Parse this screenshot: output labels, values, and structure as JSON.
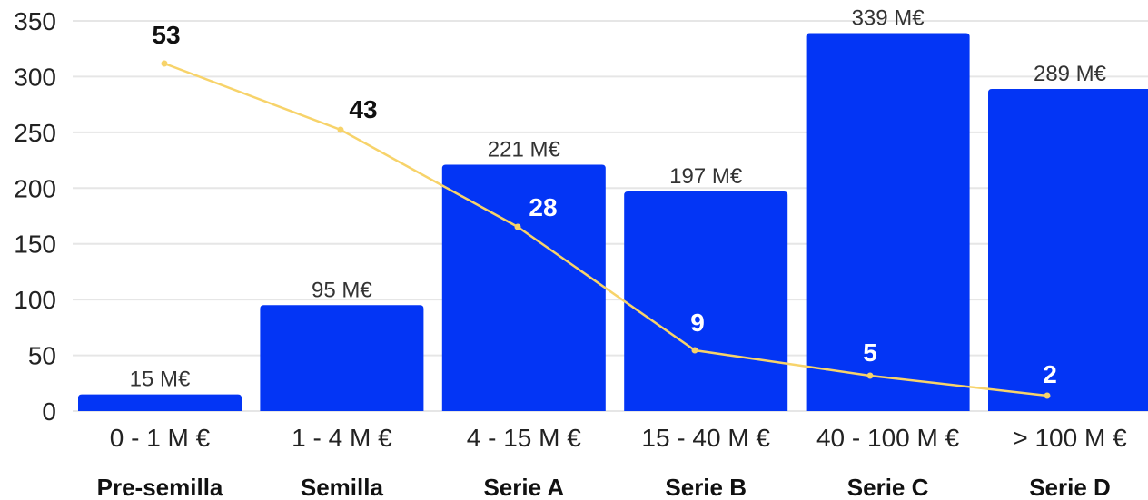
{
  "chart_data": {
    "type": "bar",
    "categories": [
      "0 - 1 M €",
      "1 - 4 M €",
      "4 - 15 M €",
      "15 - 40 M €",
      "40 - 100 M €",
      "> 100 M €"
    ],
    "stages": [
      "Pre-semilla",
      "Semilla",
      "Serie A",
      "Serie B",
      "Serie C",
      "Serie D"
    ],
    "series": [
      {
        "type": "bar",
        "values": [
          15,
          95,
          221,
          197,
          339,
          289
        ],
        "labels": [
          "15 M€",
          "95 M€",
          "221 M€",
          "197 M€",
          "339 M€",
          "289 M€"
        ],
        "color": "#0335f5"
      },
      {
        "type": "line",
        "values": [
          53,
          43,
          28,
          9,
          5,
          2
        ],
        "labels": [
          "53",
          "43",
          "28",
          "9",
          "5",
          "2"
        ],
        "color": "#f7d36a"
      }
    ],
    "yticks": [
      "0",
      "50",
      "100",
      "150",
      "200",
      "250",
      "300",
      "350"
    ],
    "ylim": [
      0,
      350
    ],
    "grid": true,
    "legend": false
  }
}
